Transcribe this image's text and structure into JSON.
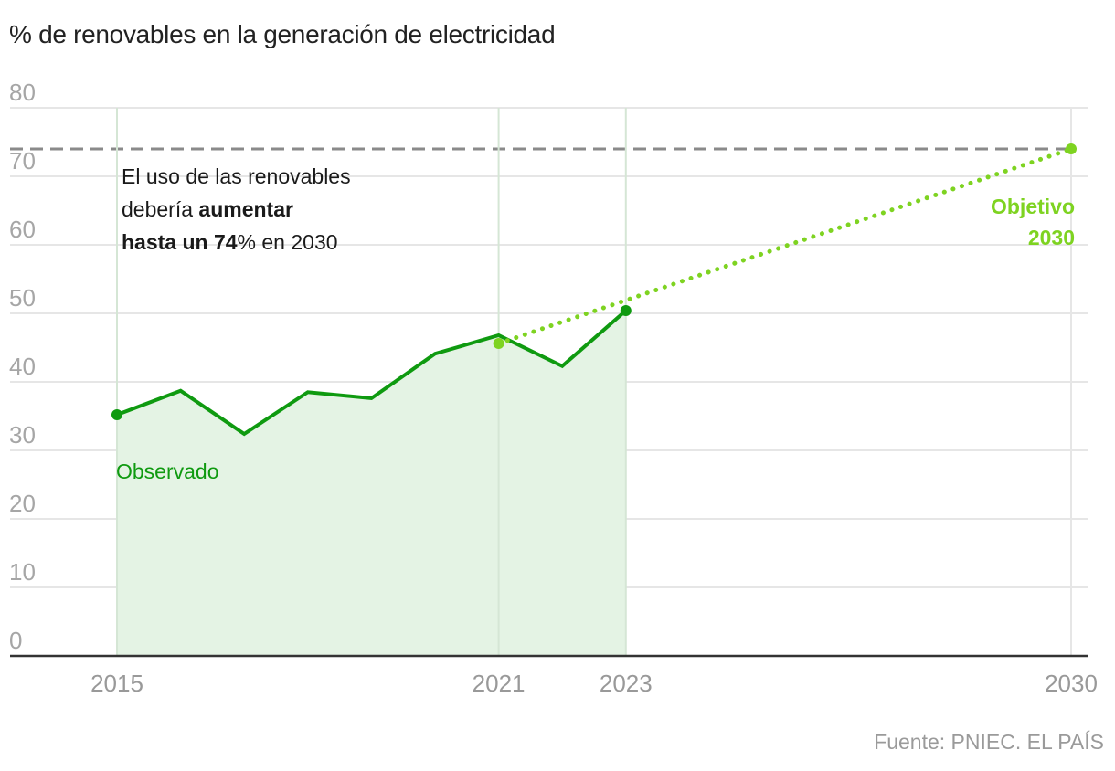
{
  "title": "% de renovables en la generación de electricidad",
  "source": "Fuente: PNIEC. EL PAÍS",
  "annotation": {
    "line1": "El uso de las renovables",
    "line2_regular": "debería ",
    "line2_bold": "aumentar",
    "line3_bold": "hasta un 74",
    "line3_pct": "%",
    "line3_regular": " en 2030"
  },
  "labels": {
    "observed": "Observado",
    "target_line1": "Objetivo",
    "target_line2": "2030"
  },
  "colors": {
    "observed_line": "#0f9a10",
    "observed_fill": "#e4f3e4",
    "projection": "#7ed321",
    "target_dash": "#8a8a8a",
    "grid": "#e6e6e6",
    "axis": "#333333"
  },
  "chart_data": {
    "type": "line",
    "title": "% de renovables en la generación de electricidad",
    "xlabel": "",
    "ylabel": "",
    "xlim": [
      2015,
      2030
    ],
    "ylim": [
      0,
      80
    ],
    "y_ticks": [
      0,
      10,
      20,
      30,
      40,
      50,
      60,
      70,
      80
    ],
    "x_ticks": [
      2015,
      2021,
      2023,
      2030
    ],
    "grid": true,
    "series": [
      {
        "name": "Observado",
        "style": "solid-area",
        "x": [
          2015,
          2016,
          2017,
          2018,
          2019,
          2020,
          2021,
          2022,
          2023
        ],
        "values": [
          35.2,
          38.7,
          32.4,
          38.5,
          37.6,
          44.1,
          46.8,
          42.3,
          50.4
        ]
      },
      {
        "name": "Objetivo 2030 (trayectoria)",
        "style": "dotted",
        "x": [
          2021,
          2030
        ],
        "values": [
          45.6,
          74
        ]
      }
    ],
    "reference_lines": [
      {
        "name": "Objetivo 74%",
        "y": 74,
        "style": "dashed"
      }
    ],
    "vertical_gridlines_at": [
      2015,
      2021,
      2023,
      2030
    ],
    "annotations": [
      "El uso de las renovables debería aumentar hasta un 74% en 2030",
      "Observado",
      "Objetivo 2030"
    ]
  }
}
